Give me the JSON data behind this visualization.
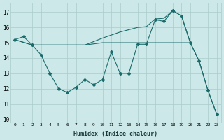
{
  "xlabel": "Humidex (Indice chaleur)",
  "background_color": "#cce8e8",
  "grid_color": "#aacccc",
  "line_color": "#1a6b6b",
  "xlim": [
    -0.5,
    23.5
  ],
  "ylim": [
    9.8,
    17.6
  ],
  "yticks": [
    10,
    11,
    12,
    13,
    14,
    15,
    16,
    17
  ],
  "xticks": [
    0,
    1,
    2,
    3,
    4,
    5,
    6,
    7,
    8,
    9,
    10,
    11,
    12,
    13,
    14,
    15,
    16,
    17,
    18,
    19,
    20,
    21,
    22,
    23
  ],
  "line1_x": [
    0,
    1,
    2,
    3,
    4,
    5,
    6,
    7,
    8,
    9,
    10,
    11,
    12,
    13,
    14,
    15,
    16,
    17,
    18,
    19,
    20,
    21,
    22,
    23
  ],
  "line1_y": [
    15.2,
    15.4,
    14.85,
    14.2,
    13.0,
    12.0,
    11.75,
    12.1,
    12.6,
    12.25,
    12.6,
    14.4,
    13.0,
    13.0,
    14.9,
    14.9,
    16.5,
    16.4,
    17.1,
    16.75,
    15.0,
    13.8,
    11.9,
    10.35
  ],
  "line2_x": [
    0,
    2,
    3,
    5,
    6,
    8,
    10,
    12,
    14,
    15,
    16,
    17,
    18,
    19,
    20
  ],
  "line2_y": [
    15.2,
    14.85,
    14.85,
    14.85,
    14.85,
    14.85,
    15.3,
    15.7,
    16.0,
    16.05,
    16.55,
    16.6,
    17.1,
    16.75,
    15.0
  ],
  "line3_x": [
    0,
    2,
    3,
    5,
    6,
    8,
    10,
    12,
    14,
    15,
    18,
    19,
    20,
    21,
    22,
    23
  ],
  "line3_y": [
    15.2,
    14.85,
    14.85,
    14.85,
    14.85,
    14.85,
    15.0,
    15.0,
    15.0,
    15.0,
    15.0,
    15.0,
    15.0,
    13.8,
    11.9,
    10.35
  ]
}
